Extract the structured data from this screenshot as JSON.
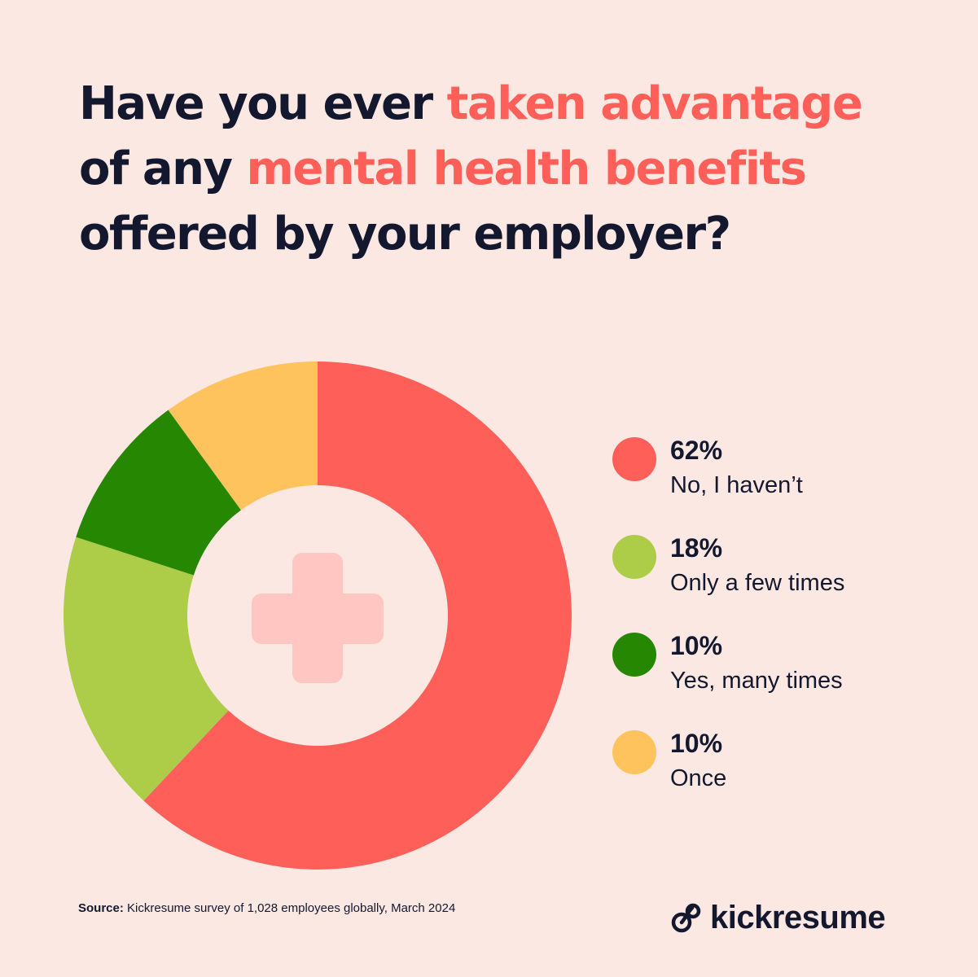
{
  "title": {
    "segments": [
      {
        "text": "Have you ever ",
        "highlight": false
      },
      {
        "text": "taken advantage",
        "highlight": true
      },
      {
        "text": " of any ",
        "highlight": false
      },
      {
        "text": "mental health benefits",
        "highlight": true
      },
      {
        "text": " offered by your employer?",
        "highlight": false
      }
    ]
  },
  "colors": {
    "background": "#fbe8e3",
    "text": "#13182f",
    "highlight": "#fe5f59",
    "center_circle": "#fbe8e3",
    "cross": "#ffc6c2"
  },
  "chart_data": {
    "type": "pie",
    "donut": true,
    "slices": [
      {
        "label": "No, I haven’t",
        "value": 62,
        "display": "62%",
        "color": "#fe5f59"
      },
      {
        "label": "Only a few times",
        "value": 18,
        "display": "18%",
        "color": "#adcc48"
      },
      {
        "label": "Yes, many times",
        "value": 10,
        "display": "10%",
        "color": "#268703"
      },
      {
        "label": "Once",
        "value": 10,
        "display": "10%",
        "color": "#fec35c"
      }
    ],
    "center_icon": "medical-cross-icon",
    "legend_position": "right"
  },
  "footer": {
    "source_label": "Source:",
    "source_text": " Kickresume survey of 1,028 employees globally, March 2024",
    "brand": "kickresume",
    "brand_icon": "kickresume-logo-icon"
  }
}
